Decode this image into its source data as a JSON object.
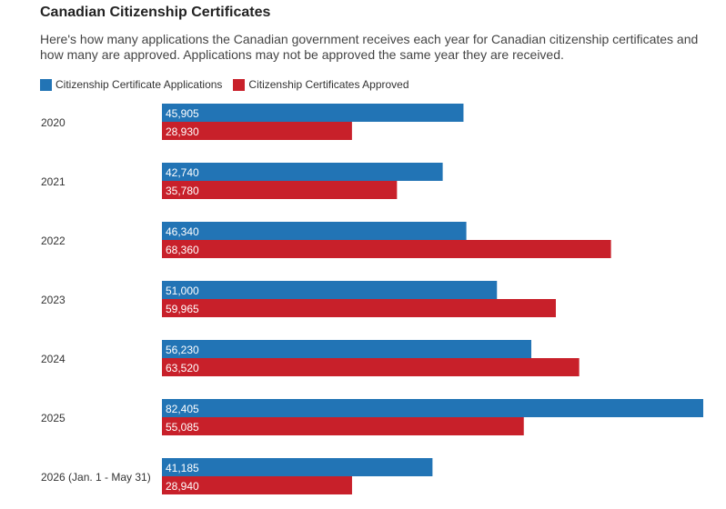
{
  "title": "Canadian Citizenship Certificates",
  "subtitle": "Here's how many applications the Canadian government receives each year for Canadian citizenship certificates and how many are approved. Applications may not be approved the same year they are received.",
  "colors": {
    "applications": "#2274b5",
    "approved": "#c8202a"
  },
  "chart_data": {
    "type": "bar",
    "orientation": "horizontal",
    "categories": [
      "2020",
      "2021",
      "2022",
      "2023",
      "2024",
      "2025",
      "2026 (Jan. 1 - May 31)"
    ],
    "series": [
      {
        "name": "Citizenship Certificate Applications",
        "values": [
          45905,
          42740,
          46340,
          51000,
          56230,
          82405,
          41185
        ]
      },
      {
        "name": "Citizenship Certificates Approved",
        "values": [
          28930,
          35780,
          68360,
          59965,
          63520,
          55085,
          28940
        ]
      }
    ],
    "data_labels": [
      [
        "45,905",
        "42,740",
        "46,340",
        "51,000",
        "56,230",
        "82,405",
        "41,185"
      ],
      [
        "28,930",
        "35,780",
        "68,360",
        "59,965",
        "63,520",
        "55,085",
        "28,940"
      ]
    ],
    "legend_position": "top-left",
    "grid": false
  }
}
